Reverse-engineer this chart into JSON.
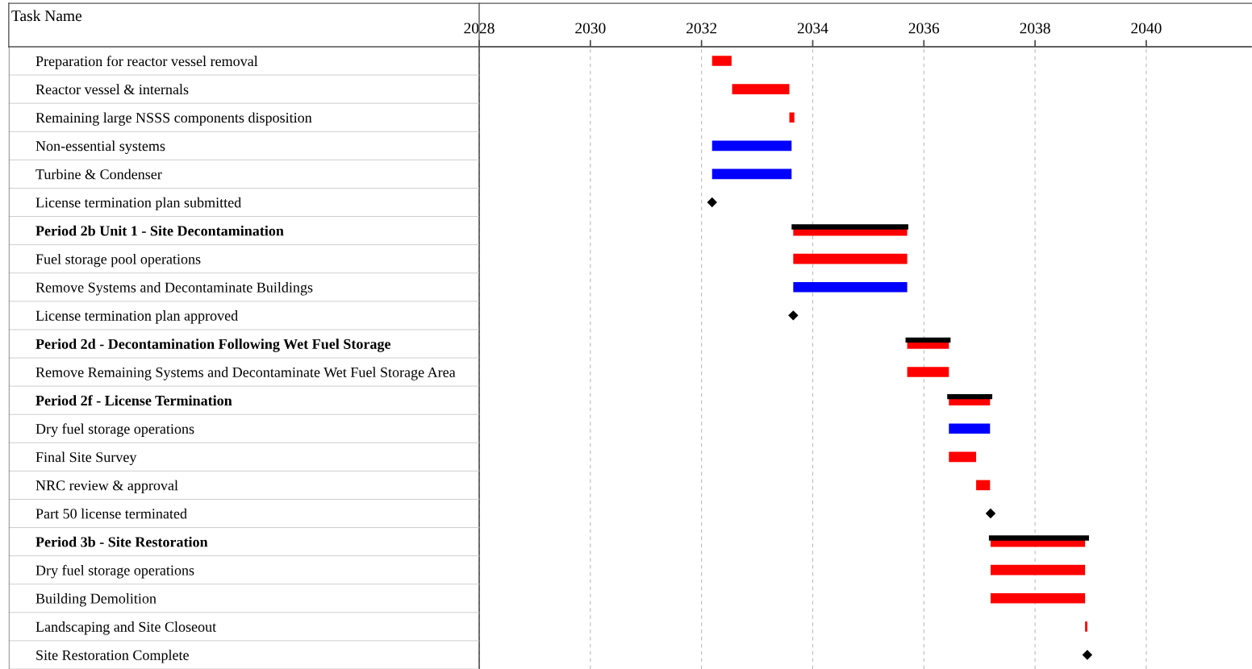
{
  "chart_data": {
    "type": "bar",
    "orientation": "horizontal",
    "ylabel": "Task Name",
    "categories": [
      "Preparation for reactor vessel removal",
      "Reactor vessel & internals",
      "Remaining large NSSS components disposition",
      "Non-essential systems",
      "Turbine & Condenser",
      "License termination plan submitted",
      "Period 2b Unit 1 - Site Decontamination",
      "Fuel storage pool operations",
      "Remove Systems and Decontaminate Buildings",
      "License termination plan approved",
      "Period 2d - Decontamination Following Wet Fuel Storage",
      "Remove Remaining Systems and Decontaminate Wet Fuel Storage Area",
      "Period 2f - License Termination",
      "Dry fuel storage operations",
      "Final Site Survey",
      "NRC review & approval",
      "Part 50 license terminated",
      "Period 3b - Site Restoration",
      "Dry fuel storage operations",
      "Building Demolition",
      "Landscaping and Site Closeout",
      "Site Restoration Complete"
    ],
    "series": [
      {
        "color": "#ff0000",
        "base": [
          2032.19,
          2032.55,
          2033.58,
          null,
          null,
          null,
          2033.65,
          2033.65,
          null,
          null,
          2035.7,
          2035.7,
          2036.45,
          null,
          2036.45,
          2036.94,
          null,
          2037.2,
          2037.2,
          2037.2,
          2038.9,
          null
        ],
        "values": [
          0.35,
          1.03,
          0.09,
          null,
          null,
          null,
          2.05,
          2.05,
          null,
          null,
          0.75,
          0.75,
          0.74,
          null,
          0.49,
          0.25,
          null,
          1.7,
          1.7,
          1.7,
          0.04,
          null
        ]
      },
      {
        "color": "#0000ff",
        "base": [
          null,
          null,
          null,
          2032.19,
          2032.19,
          null,
          null,
          null,
          2033.65,
          null,
          null,
          null,
          null,
          2036.45,
          null,
          null,
          null,
          null,
          null,
          null,
          null,
          null
        ],
        "values": [
          null,
          null,
          null,
          1.43,
          1.43,
          null,
          null,
          null,
          2.05,
          null,
          null,
          null,
          null,
          0.74,
          null,
          null,
          null,
          null,
          null,
          null,
          null,
          null
        ]
      },
      {
        "color": "#000000",
        "base": [
          null,
          null,
          null,
          null,
          null,
          null,
          2033.62,
          null,
          null,
          null,
          2035.67,
          null,
          2036.42,
          null,
          null,
          null,
          null,
          2037.17,
          null,
          null,
          null,
          null
        ],
        "values": [
          null,
          null,
          null,
          null,
          null,
          null,
          2.1,
          null,
          null,
          null,
          0.81,
          null,
          0.81,
          null,
          null,
          null,
          null,
          1.8,
          null,
          null,
          null,
          null
        ]
      },
      {
        "type": "scatter",
        "color": "#000000",
        "marker": "diamond",
        "values": [
          null,
          null,
          null,
          null,
          null,
          2032.19,
          null,
          null,
          null,
          2033.65,
          null,
          null,
          null,
          null,
          null,
          null,
          2037.2,
          null,
          null,
          null,
          null,
          2038.94
        ]
      }
    ],
    "xlim": [
      2028,
      2041.88
    ],
    "xticks": [
      2028,
      2030,
      2032,
      2034,
      2036,
      2038,
      2040
    ],
    "grid": "x"
  }
}
